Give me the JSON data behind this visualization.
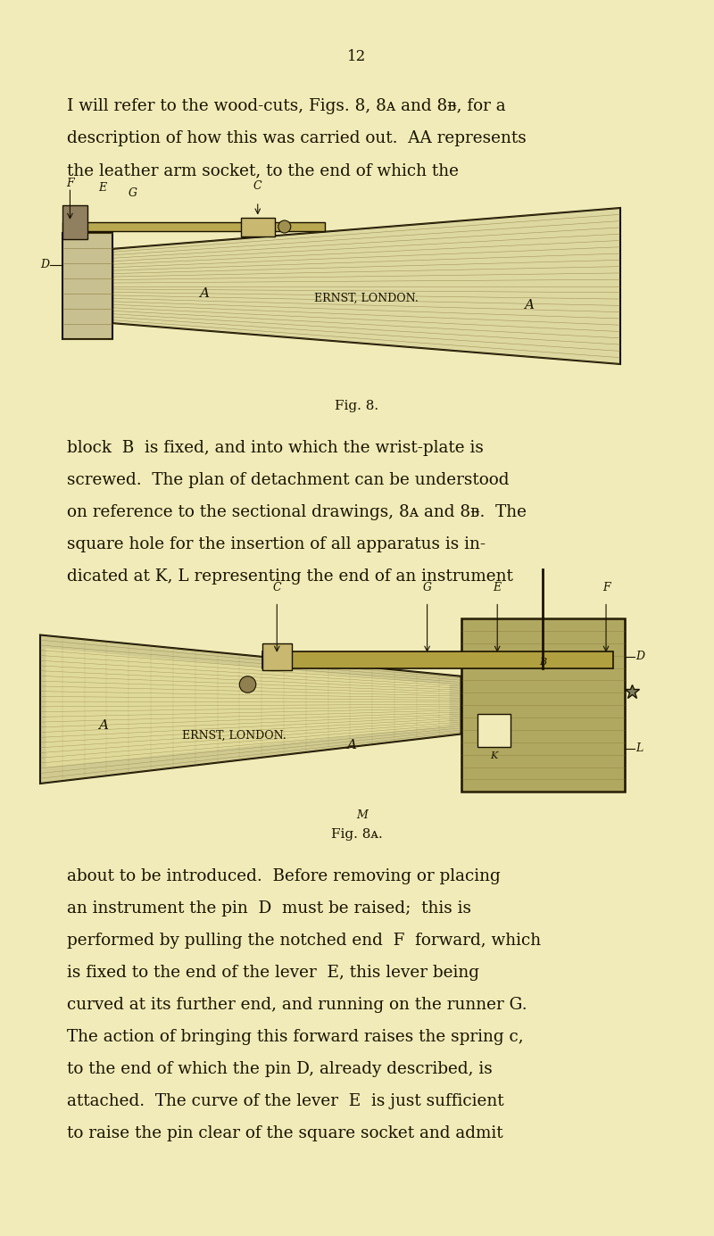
{
  "bg_color": "#f0ebb8",
  "page_number": "12",
  "text1": [
    "I will refer to the wood-cuts, Figs. 8, 8ᴀ and 8ᴃ, for a",
    "description of how this was carried out.  AA represents",
    "the leather arm socket, to the end of which the"
  ],
  "text2": [
    "block  B  is fixed, and into which the wrist-plate is",
    "screwed.  The plan of detachment can be understood",
    "on reference to the sectional drawings, 8ᴀ and 8ᴃ.  The",
    "square hole for the insertion of all apparatus is in-",
    "dicated at K, L representing the end of an instrument"
  ],
  "text3": [
    "about to be introduced.  Before removing or placing",
    "an instrument the pin  D  must be raised;  this is",
    "performed by pulling the notched end  F  forward, which",
    "is fixed to the end of the lever  E, this lever being",
    "curved at its further end, and running on the runner G.",
    "The action of bringing this forward raises the spring c,",
    "to the end of which the pin D, already described, is",
    "attached.  The curve of the lever  E  is just sufficient",
    "to raise the pin clear of the square socket and admit"
  ],
  "dark": "#1a1200",
  "hatch_color": "#7a6830",
  "fig8_caption": "Fig. 8.",
  "fig8a_caption": "Fig. 8ᴀ."
}
